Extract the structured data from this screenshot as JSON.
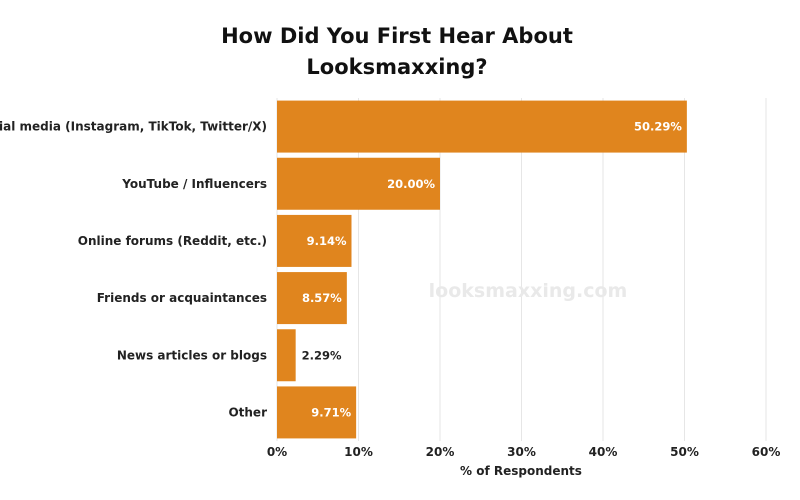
{
  "chart_data": {
    "type": "bar",
    "orientation": "horizontal",
    "title_lines": [
      "How Did You First Hear About",
      "Looksmaxxing?"
    ],
    "categories": [
      "Social media (Instagram, TikTok, Twitter/X)",
      "YouTube / Influencers",
      "Online forums (Reddit, etc.)",
      "Friends or acquaintances",
      "News articles or blogs",
      "Other"
    ],
    "values": [
      50.29,
      20.0,
      9.14,
      8.57,
      2.29,
      9.71
    ],
    "value_labels": [
      "50.29%",
      "20.00%",
      "9.14%",
      "8.57%",
      "2.29%",
      "9.71%"
    ],
    "xlabel": "% of Respondents",
    "ylabel": "",
    "xlim": [
      0,
      60
    ],
    "x_ticks": [
      0,
      10,
      20,
      30,
      40,
      50,
      60
    ],
    "x_tick_labels": [
      "0%",
      "10%",
      "20%",
      "30%",
      "40%",
      "50%",
      "60%"
    ],
    "grid": true,
    "bar_color": "#e0851e",
    "watermark": "looksmaxxing.com"
  }
}
